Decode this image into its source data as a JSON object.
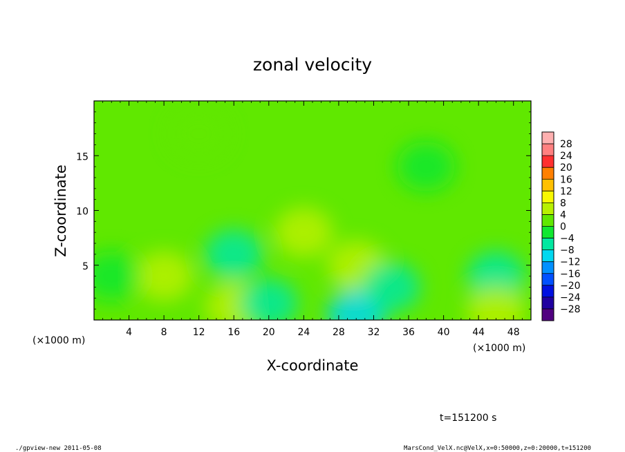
{
  "chart_data": {
    "type": "heatmap",
    "title": "zonal velocity",
    "xlabel": "X-coordinate",
    "ylabel": "Z-coordinate",
    "x_unit_left": "(×1000 m)",
    "x_unit_right": "(×1000 m)",
    "xlim": [
      0,
      50
    ],
    "ylim": [
      0,
      20
    ],
    "xticks": [
      4,
      8,
      12,
      16,
      20,
      24,
      28,
      32,
      36,
      40,
      44,
      48
    ],
    "yticks": [
      5,
      10,
      15
    ],
    "colorbar": {
      "levels": [
        -28,
        -24,
        -20,
        -16,
        -12,
        -8,
        -4,
        0,
        4,
        8,
        12,
        16,
        20,
        24,
        28
      ],
      "colors": [
        "#500080",
        "#2000a0",
        "#0010e0",
        "#0050ff",
        "#0090ff",
        "#00d8f0",
        "#00e8a0",
        "#10e830",
        "#60e800",
        "#b8f000",
        "#f8f800",
        "#ffc000",
        "#ff8000",
        "#ff3030",
        "#ff8080",
        "#ffb0b0"
      ]
    },
    "features": [
      {
        "x": 30,
        "z": 0.5,
        "value": -10
      },
      {
        "x": 16,
        "z": 6,
        "value": -7
      },
      {
        "x": 46,
        "z": 4,
        "value": -7
      },
      {
        "x": 30,
        "z": 5,
        "value": 6
      },
      {
        "x": 8,
        "z": 4,
        "value": 4
      },
      {
        "x": 46,
        "z": 0.8,
        "value": 7
      },
      {
        "x": 16,
        "z": 1.2,
        "value": 5
      },
      {
        "x": 24,
        "z": 8,
        "value": 4
      },
      {
        "x": 34,
        "z": 3,
        "value": -6
      },
      {
        "x": 20,
        "z": 1.5,
        "value": -5
      },
      {
        "x": 2,
        "z": 4,
        "value": -4
      },
      {
        "x": 38,
        "z": 14,
        "value": -3
      },
      {
        "x": 12,
        "z": 17,
        "value": 1
      }
    ],
    "background_value": 0
  },
  "annotations": {
    "time": "t=151200 s",
    "footer_left": "./gpview-new  2011-05-08",
    "footer_right": "MarsCond_VelX.nc@VelX,x=0:50000,z=0:20000,t=151200"
  }
}
